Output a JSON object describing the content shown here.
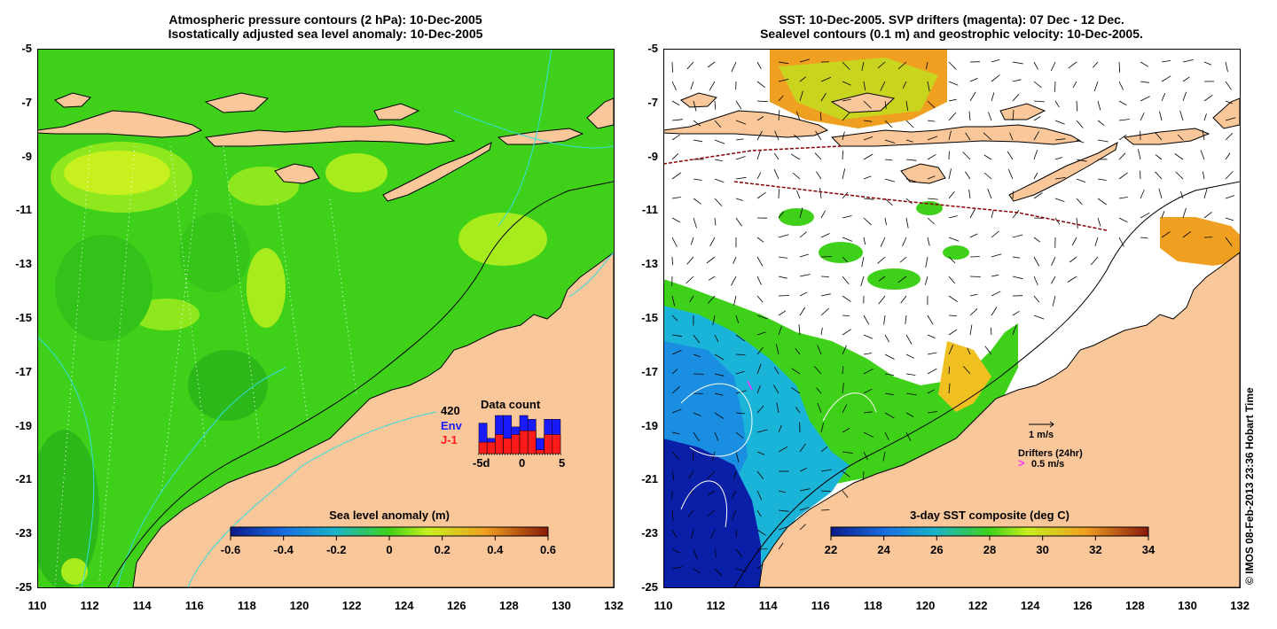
{
  "left_panel": {
    "title_line1": "Atmospheric pressure contours (2 hPa): 10-Dec-2005",
    "title_line2": "Isostatically adjusted sea level anomaly: 10-Dec-2005",
    "colorbar": {
      "title": "Sea level anomaly (m)",
      "ticks": [
        "-0.6",
        "-0.4",
        "-0.2",
        "0",
        "0.2",
        "0.4",
        "0.6"
      ]
    },
    "data_count": {
      "title": "Data count",
      "total": "420",
      "env_label": "Env",
      "j1_label": "J-1",
      "axis_labels": [
        "-5d",
        "0",
        "5"
      ],
      "env_values": [
        8,
        4,
        10,
        10,
        7,
        10,
        9,
        4,
        9,
        9
      ],
      "j1_values": [
        3,
        3,
        5,
        4,
        5,
        6,
        6,
        1,
        5,
        5
      ],
      "env_color": "#1a1aff",
      "j1_color": "#ff1a1a"
    }
  },
  "right_panel": {
    "title_line1": "SST: 10-Dec-2005. SVP drifters (magenta): 07 Dec - 12 Dec.",
    "title_line2": "Sealevel contours (0.1 m) and geostrophic velocity: 10-Dec-2005.",
    "colorbar": {
      "title": "3-day SST composite (deg C)",
      "ticks": [
        "22",
        "24",
        "26",
        "28",
        "30",
        "32",
        "34"
      ]
    },
    "legend": {
      "velocity": "1 m/s",
      "drifters": "Drifters (24hr)",
      "drifter_speed": "0.5 m/s"
    }
  },
  "axes": {
    "lat_ticks": [
      "-5",
      "-7",
      "-9",
      "-11",
      "-13",
      "-15",
      "-17",
      "-19",
      "-21",
      "-23",
      "-25"
    ],
    "lon_ticks": [
      "110",
      "112",
      "114",
      "116",
      "118",
      "120",
      "122",
      "124",
      "126",
      "128",
      "130",
      "132"
    ]
  },
  "copyright": "© IMOS 08-Feb-2013 23:36 Hobart Time",
  "colors": {
    "land": "#f9c79a",
    "ocean_green": "#3fd11a",
    "ocean_bright": "#66e81d",
    "anomaly_yellow": "#c8f01e",
    "sst_deep": "#0a1fa8",
    "sst_blue": "#1a6ee0",
    "sst_cyan": "#1ab4d8",
    "sst_orange": "#f0a020",
    "pressure_contour": "#33dddd",
    "sealevel_contour": "#000000"
  }
}
